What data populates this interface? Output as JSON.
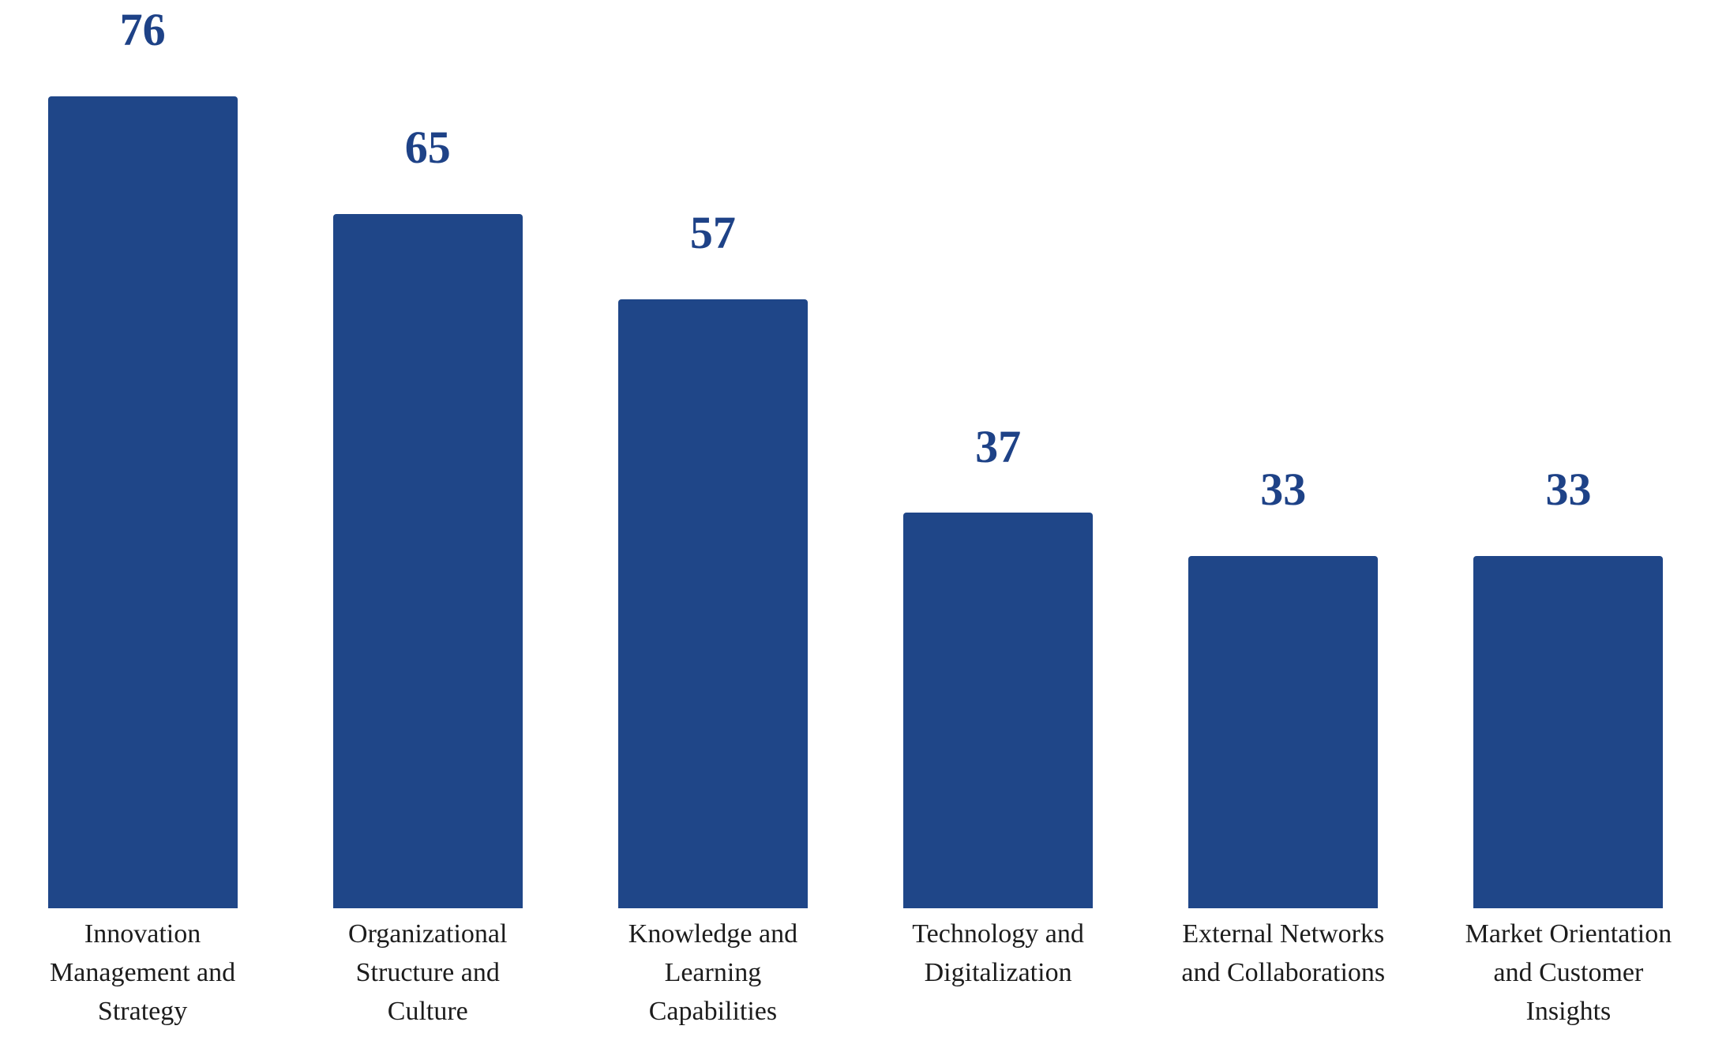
{
  "chart_data": {
    "type": "bar",
    "title": "",
    "categories": [
      "Innovation Management and Strategy",
      "Organizational Structure and Culture",
      "Knowledge and Learning Capabilities",
      "Technology and Digitalization",
      "External Networks and Collaborations",
      "Market Orientation and Customer Insights"
    ],
    "category_lines": [
      [
        "Innovation",
        "Management and",
        "Strategy"
      ],
      [
        "Organizational",
        "Structure and",
        "Culture"
      ],
      [
        "Knowledge and",
        "Learning",
        "Capabilities"
      ],
      [
        "Technology and",
        "Digitalization"
      ],
      [
        "External Networks",
        "and Collaborations"
      ],
      [
        "Market Orientation",
        "and Customer",
        "Insights"
      ]
    ],
    "values": [
      76,
      65,
      57,
      37,
      33,
      33
    ],
    "data_labels": [
      76,
      65,
      57,
      37,
      33,
      33
    ],
    "xlabel": "",
    "ylabel": "",
    "ylim": [
      0,
      85
    ],
    "grid": false,
    "legend": false,
    "value_axis_visible": false,
    "category_axis_line_visible": false,
    "colors": {
      "bar_fill": "#1f4688",
      "value_label": "#1e4287",
      "category_label": "#1c1c1c",
      "background": "#ffffff"
    }
  }
}
